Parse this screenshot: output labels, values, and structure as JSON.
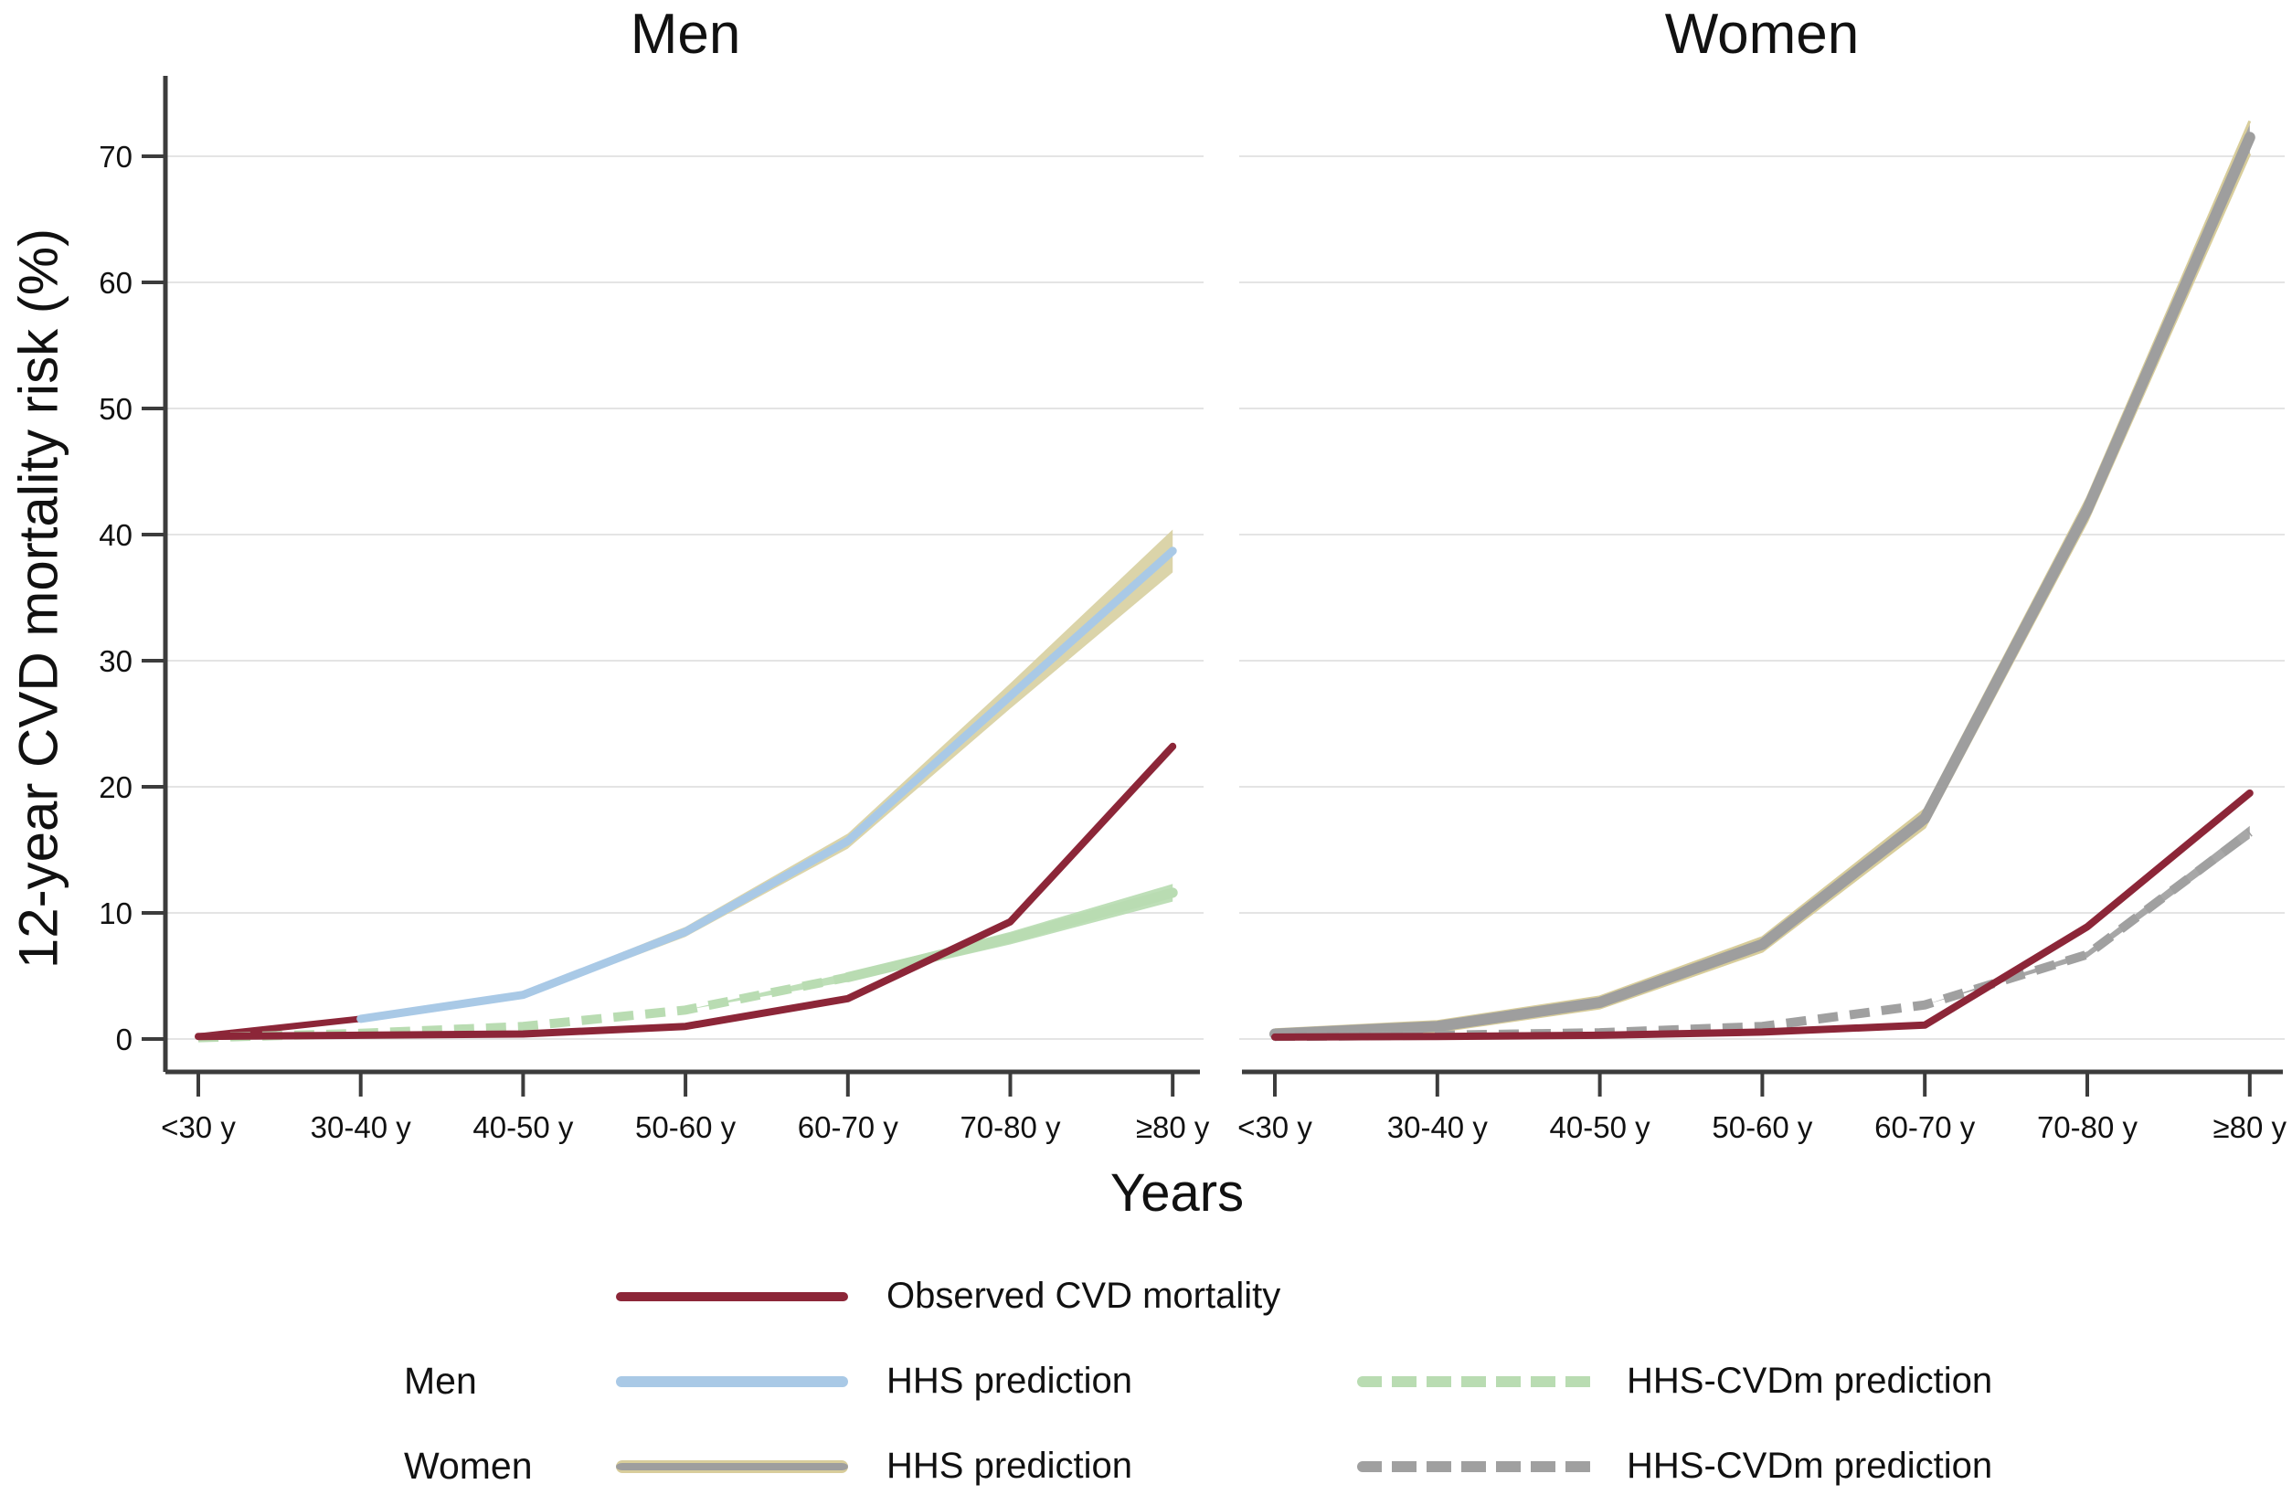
{
  "y_axis": {
    "label": "12-year CVD mortality risk (%)",
    "ticks": [
      0,
      10,
      20,
      30,
      40,
      50,
      60,
      70
    ]
  },
  "x_axis": {
    "label": "Years",
    "categories": [
      "<30 y",
      "30-40 y",
      "40-50 y",
      "50-60 y",
      "60-70 y",
      "70-80 y",
      "≥80 y"
    ]
  },
  "colors": {
    "observed": "#8c2638",
    "hhs_men": "#a9c9e6",
    "hhs_men_band": "#d8d0a2",
    "hhs_cvdm_men": "#b9dcb2",
    "hhs_women": "#9e9e9e",
    "hhs_women_casing": "#d8cd9b",
    "hhs_cvdm_women": "#a0a0a0",
    "gridline": "#e4e4e4",
    "axis": "#3c3c3c",
    "text": "#111111"
  },
  "chart_data": [
    {
      "type": "line",
      "title": "Men",
      "xlabel": "Years",
      "ylabel": "12-year CVD mortality risk (%)",
      "ylim": [
        0,
        76
      ],
      "yticks": [
        0,
        10,
        20,
        30,
        40,
        50,
        60,
        70
      ],
      "grid": "horizontal",
      "categories": [
        "<30 y",
        "30-40 y",
        "40-50 y",
        "50-60 y",
        "60-70 y",
        "70-80 y",
        "≥80 y"
      ],
      "series": [
        {
          "name": "Observed CVD mortality",
          "style": "solid",
          "color_key": "observed",
          "values": [
            0.2,
            0.3,
            0.4,
            1.0,
            3.2,
            9.3,
            23.2
          ]
        },
        {
          "name": "HHS prediction",
          "style": "solid",
          "color_key": "hhs_men",
          "band_color_key": "hhs_men_band",
          "lead_segment_color_key": "observed",
          "solid_from_index": 1,
          "values": [
            0.2,
            1.6,
            3.5,
            8.5,
            15.7,
            27.2,
            38.7
          ],
          "ci": [
            0,
            0,
            0.25,
            0.4,
            0.6,
            1.0,
            1.7
          ]
        },
        {
          "name": "HHS-CVDm prediction",
          "style": "dashed",
          "color_key": "hhs_cvdm_men",
          "solid_from_index": 4,
          "values": [
            0.1,
            0.45,
            1.0,
            2.3,
            4.9,
            8.0,
            11.6
          ],
          "ci": [
            0,
            0,
            0,
            0,
            0.35,
            0.5,
            0.7
          ]
        }
      ]
    },
    {
      "type": "line",
      "title": "Women",
      "xlabel": "Years",
      "ylabel": "12-year CVD mortality risk (%)",
      "ylim": [
        0,
        76
      ],
      "yticks": [
        0,
        10,
        20,
        30,
        40,
        50,
        60,
        70
      ],
      "grid": "horizontal",
      "categories": [
        "<30 y",
        "30-40 y",
        "40-50 y",
        "50-60 y",
        "60-70 y",
        "70-80 y",
        "≥80 y"
      ],
      "series": [
        {
          "name": "Observed CVD mortality",
          "style": "solid",
          "color_key": "observed",
          "values": [
            0.15,
            0.2,
            0.3,
            0.55,
            1.1,
            8.9,
            19.5
          ]
        },
        {
          "name": "HHS prediction",
          "style": "band",
          "color_key": "hhs_women",
          "casing_color_key": "hhs_women_casing",
          "values": [
            0.4,
            1.0,
            2.9,
            7.5,
            17.5,
            42.0,
            71.5
          ],
          "ci": [
            0.35,
            0.4,
            0.45,
            0.55,
            0.7,
            0.9,
            1.3
          ]
        },
        {
          "name": "HHS-CVDm prediction",
          "style": "dashed",
          "color_key": "hhs_cvdm_women",
          "values": [
            0.2,
            0.3,
            0.5,
            1.0,
            2.7,
            6.7,
            16.4
          ],
          "ci": [
            0,
            0,
            0,
            0,
            0,
            0.25,
            0.5
          ]
        }
      ]
    }
  ],
  "legend": {
    "position": "bottom",
    "rows": [
      {
        "group_label": "",
        "series_left": "Observed CVD mortality",
        "series_right": ""
      },
      {
        "group_label": "Men",
        "series_left": "HHS prediction",
        "series_right": "HHS-CVDm prediction"
      },
      {
        "group_label": "Women",
        "series_left": "HHS prediction",
        "series_right": "HHS-CVDm prediction"
      }
    ]
  }
}
